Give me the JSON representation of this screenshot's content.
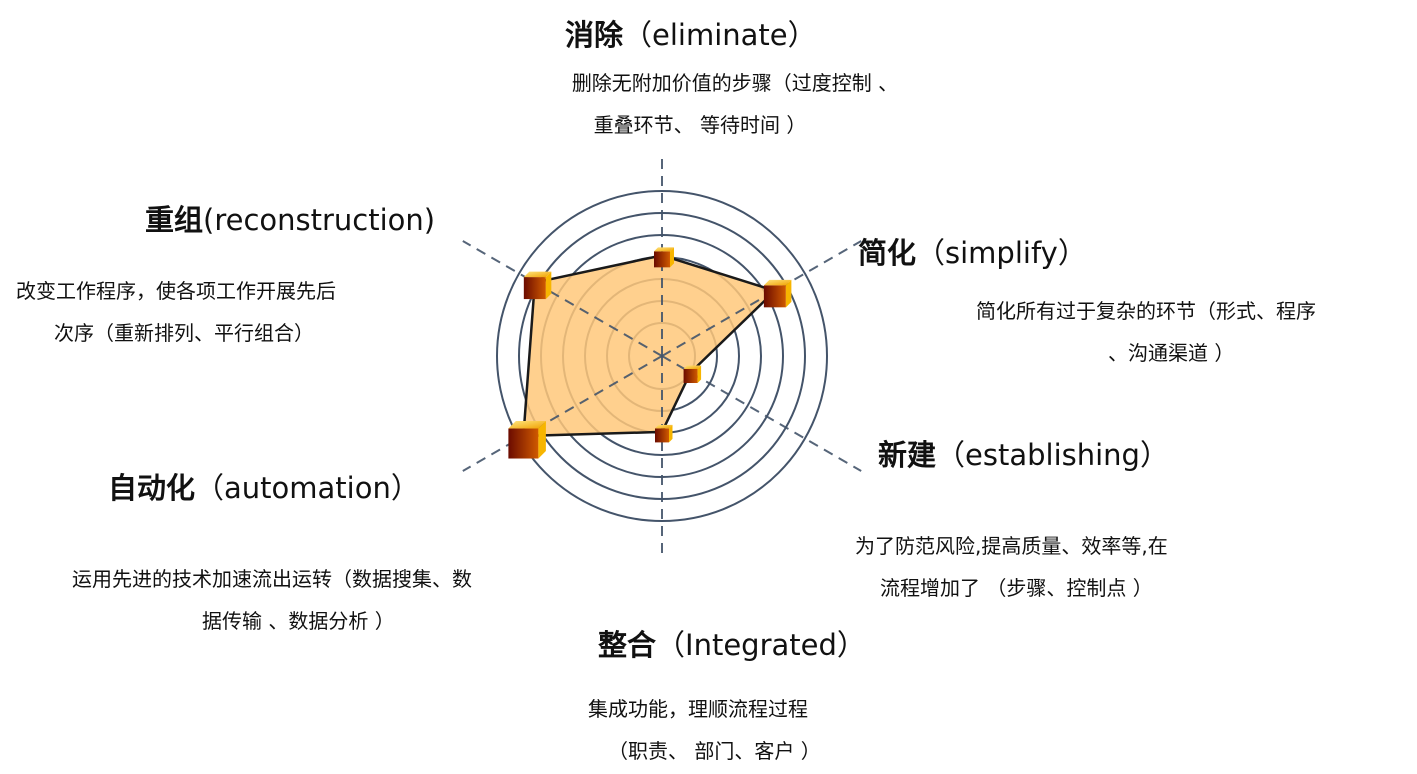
{
  "chart_data": {
    "type": "radar",
    "categories": [
      "消除",
      "简化",
      "新建",
      "整合",
      "自动化",
      "重组"
    ],
    "values": [
      0.61,
      0.79,
      0.2,
      0.46,
      0.97,
      0.89
    ],
    "rings": 7,
    "fill_color": "#FFC87A",
    "line_color": "#1a1a1a",
    "ring_color": "#44546A",
    "marker_color": "#F0A000"
  },
  "labels": [
    {
      "zh": "消除",
      "en": "（eliminate）",
      "desc1": "删除无附加价值的步骤（过度控制 、",
      "desc2": "重叠环节、 等待时间 ）"
    },
    {
      "zh": "简化",
      "en": "（simplify）",
      "desc1": "简化所有过于复杂的环节（形式、程序",
      "desc2": "、沟通渠道 ）"
    },
    {
      "zh": "新建",
      "en": "（establishing）",
      "desc1": "为了防范风险,提高质量、效率等,在",
      "desc2": "流程增加了 （步骤、控制点 ）"
    },
    {
      "zh": "整合",
      "en": "（Integrated）",
      "desc1": "集成功能，理顺流程过程",
      "desc2": "（职责、 部门、客户 ）"
    },
    {
      "zh": "自动化",
      "en": "（automation）",
      "desc1": "运用先进的技术加速流出运转（数据搜集、数",
      "desc2": "据传输 、数据分析 ）"
    },
    {
      "zh": "重组",
      "en": "(reconstruction)",
      "desc1": "改变工作程序，使各项工作开展先后",
      "desc2": "次序（重新排列、平行组合）"
    }
  ]
}
